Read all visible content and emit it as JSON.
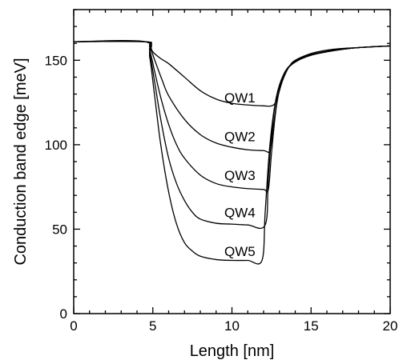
{
  "chart_data": {
    "type": "line",
    "xlabel": "Length [nm]",
    "ylabel": "Conduction band edge [meV]",
    "xlim": [
      0,
      20
    ],
    "ylim": [
      0,
      180
    ],
    "x_major_ticks": [
      0,
      5,
      10,
      15,
      20
    ],
    "x_tick_labels": [
      "0",
      "5",
      "10",
      "15",
      "20"
    ],
    "y_major_ticks": [
      0,
      50,
      100,
      150
    ],
    "y_tick_labels": [
      "0",
      "50",
      "100",
      "150"
    ],
    "grid": false,
    "series": [
      {
        "name": "QW1",
        "label_at": [
          10.5,
          128
        ],
        "points": [
          [
            0,
            161
          ],
          [
            4.5,
            161
          ],
          [
            4.8,
            159
          ],
          [
            5.0,
            155
          ],
          [
            5.5,
            151
          ],
          [
            6.0,
            148
          ],
          [
            7,
            140
          ],
          [
            8,
            132
          ],
          [
            9,
            127
          ],
          [
            10,
            124.5
          ],
          [
            11,
            123.5
          ],
          [
            12,
            123
          ],
          [
            12.5,
            123
          ],
          [
            12.8,
            126
          ],
          [
            13.2,
            138
          ],
          [
            13.6,
            146
          ],
          [
            14,
            150
          ],
          [
            15,
            154
          ],
          [
            16,
            156
          ],
          [
            17,
            157
          ],
          [
            18,
            157.5
          ],
          [
            19,
            158
          ],
          [
            20,
            158.5
          ]
        ]
      },
      {
        "name": "QW2",
        "label_at": [
          10.5,
          105
        ],
        "points": [
          [
            0,
            161
          ],
          [
            4.5,
            161
          ],
          [
            4.8,
            158
          ],
          [
            5.2,
            148
          ],
          [
            5.6,
            138
          ],
          [
            6,
            129
          ],
          [
            7,
            115
          ],
          [
            8,
            106
          ],
          [
            9,
            101
          ],
          [
            10,
            98.5
          ],
          [
            11,
            97
          ],
          [
            12,
            96.5
          ],
          [
            12.4,
            96.5
          ],
          [
            12.6,
            110
          ],
          [
            12.9,
            128
          ],
          [
            13.3,
            142
          ],
          [
            13.8,
            148
          ],
          [
            14.5,
            152
          ],
          [
            15.5,
            154.5
          ],
          [
            16.5,
            156
          ],
          [
            18,
            157.5
          ],
          [
            20,
            158.5
          ]
        ]
      },
      {
        "name": "QW3",
        "label_at": [
          10.5,
          82
        ],
        "points": [
          [
            0,
            161
          ],
          [
            4.5,
            161
          ],
          [
            4.8,
            156
          ],
          [
            5.1,
            144
          ],
          [
            5.5,
            128
          ],
          [
            6,
            112
          ],
          [
            6.5,
            100
          ],
          [
            7,
            92
          ],
          [
            8,
            82
          ],
          [
            9,
            77
          ],
          [
            10,
            75
          ],
          [
            11,
            74
          ],
          [
            12,
            73.5
          ],
          [
            12.3,
            73.5
          ],
          [
            12.5,
            95
          ],
          [
            12.8,
            122
          ],
          [
            13.2,
            140
          ],
          [
            13.8,
            148
          ],
          [
            14.5,
            152
          ],
          [
            15.5,
            154.5
          ],
          [
            16.5,
            156
          ],
          [
            18,
            157.5
          ],
          [
            20,
            158.5
          ]
        ]
      },
      {
        "name": "QW4",
        "label_at": [
          10.5,
          60
        ],
        "points": [
          [
            0,
            161
          ],
          [
            4.5,
            161
          ],
          [
            4.8,
            154
          ],
          [
            5.1,
            138
          ],
          [
            5.5,
            115
          ],
          [
            6,
            92
          ],
          [
            6.5,
            77
          ],
          [
            7,
            67
          ],
          [
            7.5,
            60
          ],
          [
            8,
            56
          ],
          [
            9,
            53.5
          ],
          [
            10,
            53
          ],
          [
            11,
            52.5
          ],
          [
            12.1,
            52.5
          ],
          [
            12.3,
            80
          ],
          [
            12.6,
            115
          ],
          [
            13,
            135
          ],
          [
            13.5,
            145
          ],
          [
            14.2,
            150
          ],
          [
            15,
            153
          ],
          [
            16,
            155
          ],
          [
            17,
            156.5
          ],
          [
            18,
            157.5
          ],
          [
            20,
            158.5
          ]
        ]
      },
      {
        "name": "QW5",
        "label_at": [
          10.5,
          37
        ],
        "points": [
          [
            0,
            161
          ],
          [
            4.5,
            161
          ],
          [
            4.8,
            152
          ],
          [
            5.1,
            130
          ],
          [
            5.5,
            100
          ],
          [
            6,
            72
          ],
          [
            6.5,
            53
          ],
          [
            7,
            42
          ],
          [
            7.5,
            37
          ],
          [
            8,
            34
          ],
          [
            9,
            32
          ],
          [
            10,
            31.5
          ],
          [
            11,
            31.5
          ],
          [
            11.9,
            31.5
          ],
          [
            12.1,
            60
          ],
          [
            12.4,
            100
          ],
          [
            12.8,
            128
          ],
          [
            13.3,
            142
          ],
          [
            14,
            149
          ],
          [
            15,
            153
          ],
          [
            16,
            155
          ],
          [
            17,
            156.5
          ],
          [
            18,
            157.5
          ],
          [
            20,
            158.5
          ]
        ]
      }
    ]
  }
}
